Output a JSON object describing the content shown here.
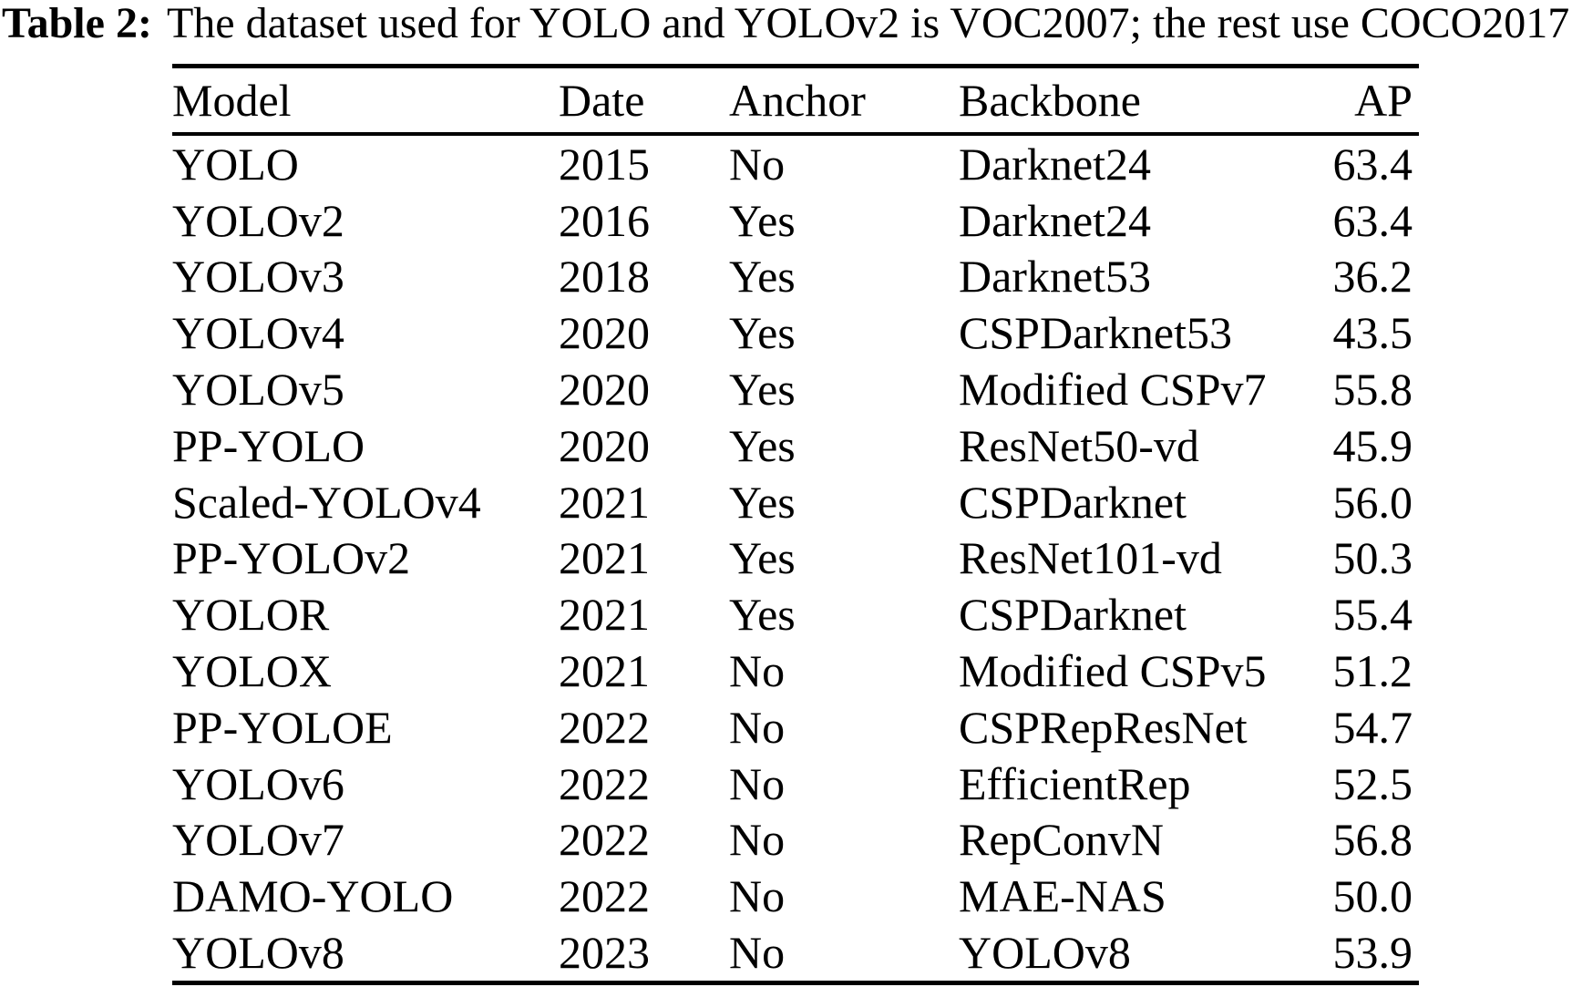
{
  "caption": {
    "label": "Table 2:",
    "text": "The dataset used for YOLO and YOLOv2 is VOC2007; the rest use COCO2017"
  },
  "colors": {
    "text": "#000000",
    "background": "#ffffff",
    "rule": "#000000"
  },
  "table": {
    "columns": [
      "Model",
      "Date",
      "Anchor",
      "Backbone",
      "AP"
    ],
    "rows": [
      {
        "model": "YOLO",
        "date": "2015",
        "anchor": "No",
        "backbone": "Darknet24",
        "ap": "63.4"
      },
      {
        "model": "YOLOv2",
        "date": "2016",
        "anchor": "Yes",
        "backbone": "Darknet24",
        "ap": "63.4"
      },
      {
        "model": "YOLOv3",
        "date": "2018",
        "anchor": "Yes",
        "backbone": "Darknet53",
        "ap": "36.2"
      },
      {
        "model": "YOLOv4",
        "date": "2020",
        "anchor": "Yes",
        "backbone": "CSPDarknet53",
        "ap": "43.5"
      },
      {
        "model": "YOLOv5",
        "date": "2020",
        "anchor": "Yes",
        "backbone": "Modified CSPv7",
        "ap": "55.8"
      },
      {
        "model": "PP-YOLO",
        "date": "2020",
        "anchor": "Yes",
        "backbone": "ResNet50-vd",
        "ap": "45.9"
      },
      {
        "model": "Scaled-YOLOv4",
        "date": "2021",
        "anchor": "Yes",
        "backbone": "CSPDarknet",
        "ap": "56.0"
      },
      {
        "model": "PP-YOLOv2",
        "date": "2021",
        "anchor": "Yes",
        "backbone": "ResNet101-vd",
        "ap": "50.3"
      },
      {
        "model": "YOLOR",
        "date": "2021",
        "anchor": "Yes",
        "backbone": "CSPDarknet",
        "ap": "55.4"
      },
      {
        "model": "YOLOX",
        "date": "2021",
        "anchor": "No",
        "backbone": "Modified CSPv5",
        "ap": "51.2"
      },
      {
        "model": "PP-YOLOE",
        "date": "2022",
        "anchor": "No",
        "backbone": "CSPRepResNet",
        "ap": "54.7"
      },
      {
        "model": "YOLOv6",
        "date": "2022",
        "anchor": "No",
        "backbone": "EfficientRep",
        "ap": "52.5"
      },
      {
        "model": "YOLOv7",
        "date": "2022",
        "anchor": "No",
        "backbone": "RepConvN",
        "ap": "56.8"
      },
      {
        "model": "DAMO-YOLO",
        "date": "2022",
        "anchor": "No",
        "backbone": "MAE-NAS",
        "ap": "50.0"
      },
      {
        "model": "YOLOv8",
        "date": "2023",
        "anchor": "No",
        "backbone": "YOLOv8",
        "ap": "53.9"
      }
    ]
  }
}
